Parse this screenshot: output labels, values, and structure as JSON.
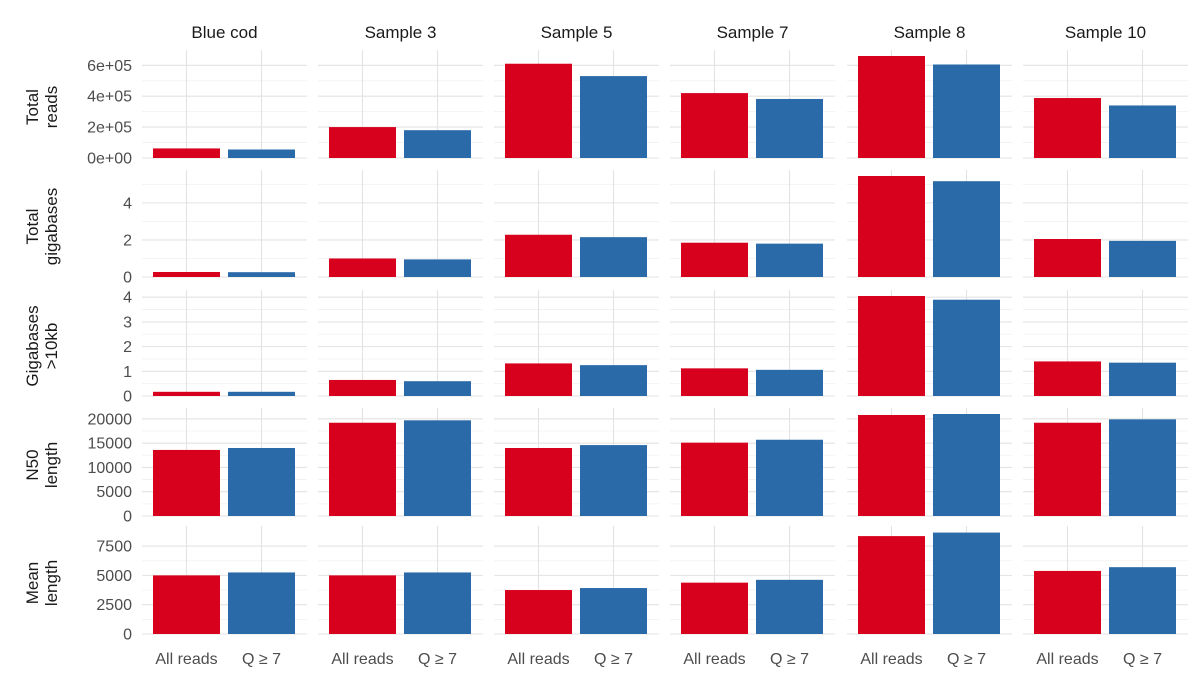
{
  "chart_data": {
    "type": "bar",
    "layout": "facet-grid",
    "categories": [
      "All reads",
      "Q ≥ 7"
    ],
    "colors": {
      "All reads": "#d7001d",
      "Q ≥ 7": "#2b6aa8"
    },
    "columns": [
      "Blue cod",
      "Sample 3",
      "Sample 5",
      "Sample 7",
      "Sample 8",
      "Sample 10"
    ],
    "rows": [
      {
        "label_lines": [
          "Total",
          "reads"
        ],
        "ylim": [
          0,
          660000
        ],
        "ticks": [
          0,
          200000,
          400000,
          600000
        ],
        "tick_labels": [
          "0e+00",
          "2e+05",
          "4e+05",
          "6e+05"
        ],
        "minor": [
          100000,
          300000,
          500000
        ],
        "values": [
          [
            62000,
            55000
          ],
          [
            200000,
            180000
          ],
          [
            610000,
            530000
          ],
          [
            420000,
            382000
          ],
          [
            660000,
            605000
          ],
          [
            388000,
            340000
          ]
        ]
      },
      {
        "label_lines": [
          "Total",
          "gigabases"
        ],
        "ylim": [
          0,
          5.45
        ],
        "ticks": [
          0,
          2,
          4
        ],
        "tick_labels": [
          "0",
          "2",
          "4"
        ],
        "minor": [
          1,
          3,
          5
        ],
        "values": [
          [
            0.27,
            0.26
          ],
          [
            1.0,
            0.95
          ],
          [
            2.28,
            2.15
          ],
          [
            1.85,
            1.8
          ],
          [
            5.45,
            5.17
          ],
          [
            2.05,
            1.95
          ]
        ]
      },
      {
        "label_lines": [
          "Gigabases",
          ">10kb"
        ],
        "ylim": [
          0,
          4.05
        ],
        "ticks": [
          0,
          1,
          2,
          3,
          4
        ],
        "tick_labels": [
          "0",
          "1",
          "2",
          "3",
          "4"
        ],
        "minor": [
          0.5,
          1.5,
          2.5,
          3.5
        ],
        "values": [
          [
            0.17,
            0.17
          ],
          [
            0.65,
            0.6
          ],
          [
            1.32,
            1.25
          ],
          [
            1.12,
            1.06
          ],
          [
            4.05,
            3.9
          ],
          [
            1.4,
            1.35
          ]
        ]
      },
      {
        "label_lines": [
          "N50",
          "length"
        ],
        "ylim": [
          0,
          21000
        ],
        "ticks": [
          0,
          5000,
          10000,
          15000,
          20000
        ],
        "tick_labels": [
          "0",
          "5000",
          "10000",
          "15000",
          "20000"
        ],
        "minor": [
          2500,
          7500,
          12500,
          17500
        ],
        "values": [
          [
            13600,
            14000
          ],
          [
            19200,
            19700
          ],
          [
            14000,
            14600
          ],
          [
            15100,
            15700
          ],
          [
            20800,
            21000
          ],
          [
            19200,
            19900
          ]
        ]
      },
      {
        "label_lines": [
          "Mean",
          "length"
        ],
        "ylim": [
          0,
          8700
        ],
        "ticks": [
          0,
          2500,
          5000,
          7500
        ],
        "tick_labels": [
          "0",
          "2500",
          "5000",
          "7500"
        ],
        "minor": [
          1250,
          3750,
          6250
        ],
        "values": [
          [
            5000,
            5250
          ],
          [
            5000,
            5250
          ],
          [
            3750,
            3920
          ],
          [
            4380,
            4620
          ],
          [
            8350,
            8650
          ],
          [
            5380,
            5700
          ]
        ]
      }
    ]
  }
}
